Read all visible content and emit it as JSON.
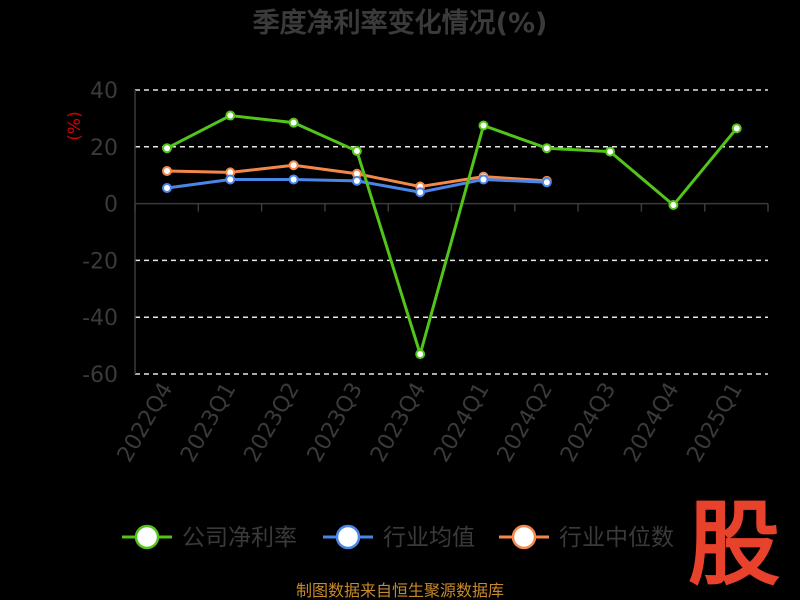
{
  "chart_data": {
    "type": "line",
    "title": "季度净利率变化情况(%)",
    "ylabel": "(%)",
    "xlabel": "",
    "categories": [
      "2022Q4",
      "2023Q1",
      "2023Q2",
      "2023Q3",
      "2023Q4",
      "2024Q1",
      "2024Q2",
      "2024Q3",
      "2024Q4",
      "2025Q1"
    ],
    "ylim": [
      -60,
      40
    ],
    "yticks": [
      40,
      20,
      0,
      -20,
      -40,
      -60
    ],
    "grid": true,
    "legend_position": "bottom",
    "series": [
      {
        "name": "公司净利率",
        "color": "#52c41a",
        "values": [
          19.5,
          31.0,
          28.5,
          18.5,
          -53.0,
          27.5,
          19.5,
          18.3,
          -0.5,
          26.5
        ]
      },
      {
        "name": "行业均值",
        "color": "#4a86e8",
        "values": [
          5.5,
          8.5,
          8.5,
          8.0,
          4.0,
          8.5,
          7.5,
          null,
          null,
          null
        ]
      },
      {
        "name": "行业中位数",
        "color": "#f4874b",
        "values": [
          11.5,
          11.0,
          13.5,
          10.5,
          6.0,
          9.5,
          8.0,
          null,
          null,
          null
        ]
      }
    ]
  },
  "source_text": "制图数据来自恒生聚源数据库",
  "watermark_text": "股"
}
